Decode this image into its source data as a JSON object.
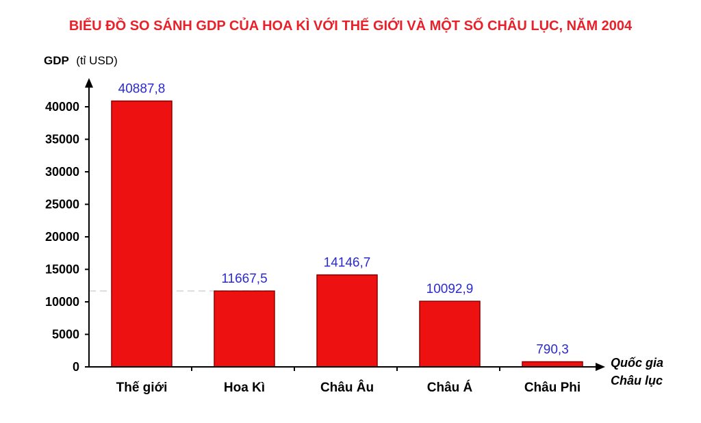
{
  "chart_data": {
    "type": "bar",
    "title": "BIỂU ĐỒ SO SÁNH GDP CỦA HOA KÌ VỚI THẾ GIỚI VÀ MỘT SỐ CHÂU LỤC, NĂM 2004",
    "ylabel_main": "GDP",
    "ylabel_unit": "(tỉ USD)",
    "xlabel_line1": "Quốc gia",
    "xlabel_line2": "Châu lục",
    "categories": [
      "Thế giới",
      "Hoa Kì",
      "Châu Âu",
      "Châu Á",
      "Châu Phi"
    ],
    "values": [
      40887.8,
      11667.5,
      14146.7,
      10092.9,
      790.3
    ],
    "value_labels": [
      "40887,8",
      "11667,5",
      "14146,7",
      "10092,9",
      "790,3"
    ],
    "yticks": [
      0,
      5000,
      10000,
      15000,
      20000,
      25000,
      30000,
      35000,
      40000
    ],
    "ylim": [
      0,
      42000
    ],
    "reference_line_value": 11667.5,
    "grid": false,
    "colors": {
      "bar": "#ee1111",
      "bar_edge": "#8a0000",
      "title": "#e8202a",
      "value_label": "#2a2ad0",
      "axis": "#000000",
      "reference_line": "#dddddd"
    }
  }
}
